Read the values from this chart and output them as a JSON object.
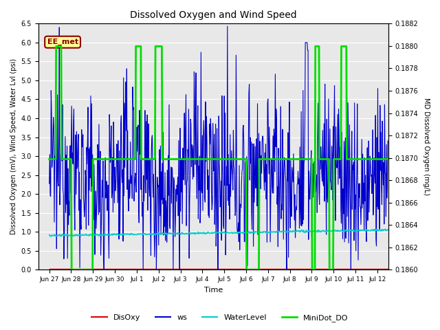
{
  "title": "Dissolved Oxygen and Wind Speed",
  "xlabel": "Time",
  "ylabel_left": "Dissolved Oxygen (mV), Wind Speed, Water Lvl (psi)",
  "ylabel_right": "MD Dissolved Oxygen (mg/L)",
  "ylim_left": [
    0.0,
    6.5
  ],
  "ylim_right": [
    0.186,
    0.1882
  ],
  "background_color": "#e8e8e8",
  "text_box_label": "EE_met",
  "text_box_color": "#8B0000",
  "text_box_bg": "#FFFF99",
  "text_box_edge": "#8B0000",
  "grid_color": "#ffffff",
  "colors": {
    "DisOxy": "#dd0000",
    "ws": "#0000cc",
    "WaterLevel": "#00cccc",
    "MiniDot_DO": "#00dd00"
  },
  "xtick_labels": [
    "Jun 27",
    "Jun 28",
    "Jun 29",
    "Jun 30",
    "Jul 1",
    "Jul 2",
    "Jul 3",
    "Jul 4",
    "Jul 5",
    "Jul 6",
    "Jul 7",
    "Jul 8",
    "Jul 9",
    "Jul 10",
    "Jul 11",
    "Jul 12"
  ],
  "xtick_positions": [
    0,
    1,
    2,
    3,
    4,
    5,
    6,
    7,
    8,
    9,
    10,
    11,
    12,
    13,
    14,
    15
  ],
  "yticks_left": [
    0.0,
    0.5,
    1.0,
    1.5,
    2.0,
    2.5,
    3.0,
    3.5,
    4.0,
    4.5,
    5.0,
    5.5,
    6.0,
    6.5
  ],
  "yticks_right": [
    0.186,
    0.1862,
    0.1864,
    0.1866,
    0.1868,
    0.187,
    0.1872,
    0.1874,
    0.1876,
    0.1878,
    0.188,
    0.1882
  ]
}
